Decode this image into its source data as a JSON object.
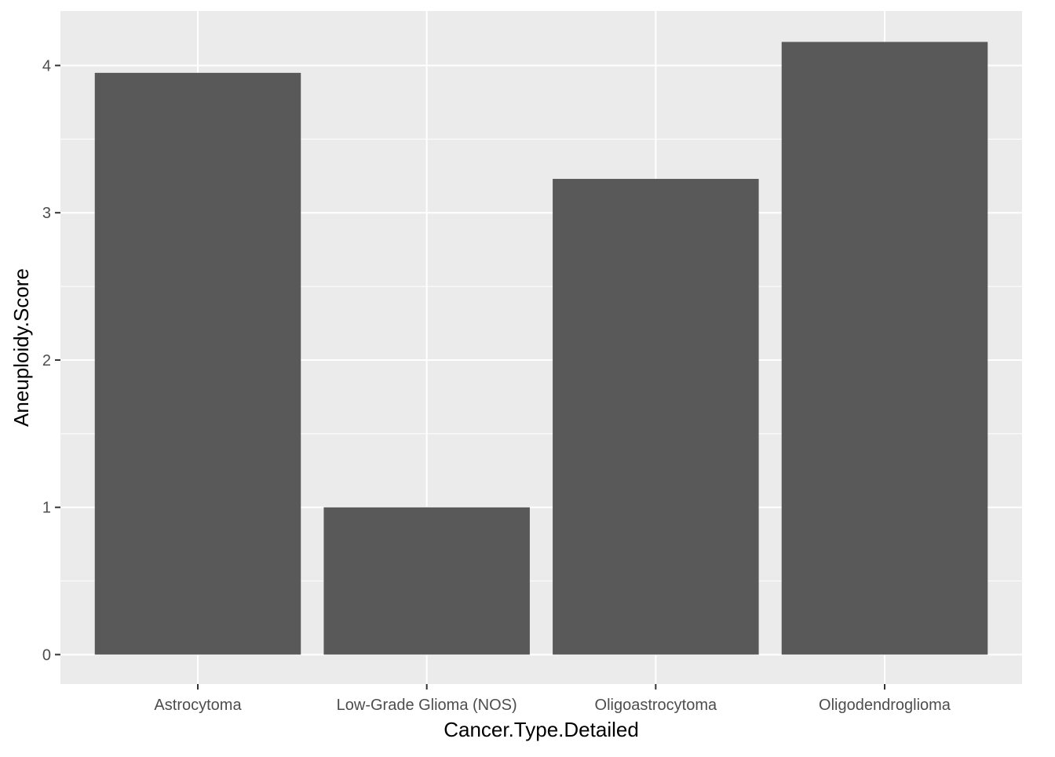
{
  "chart_data": {
    "type": "bar",
    "categories": [
      "Astrocytoma",
      "Low-Grade Glioma (NOS)",
      "Oligoastrocytoma",
      "Oligodendroglioma"
    ],
    "values": [
      3.95,
      1.0,
      3.23,
      4.16
    ],
    "title": "",
    "xlabel": "Cancer.Type.Detailed",
    "ylabel": "Aneuploidy.Score",
    "ylim": [
      -0.2,
      4.37
    ],
    "yticks": [
      "0",
      "1",
      "2",
      "3",
      "4"
    ],
    "grid": true,
    "colors": {
      "panel_background": "#EBEBEB",
      "grid_line": "#FFFFFF",
      "bar_fill": "#595959",
      "tick_label": "#4D4D4D",
      "tick_mark": "#333333",
      "axis_title": "#000000"
    }
  }
}
